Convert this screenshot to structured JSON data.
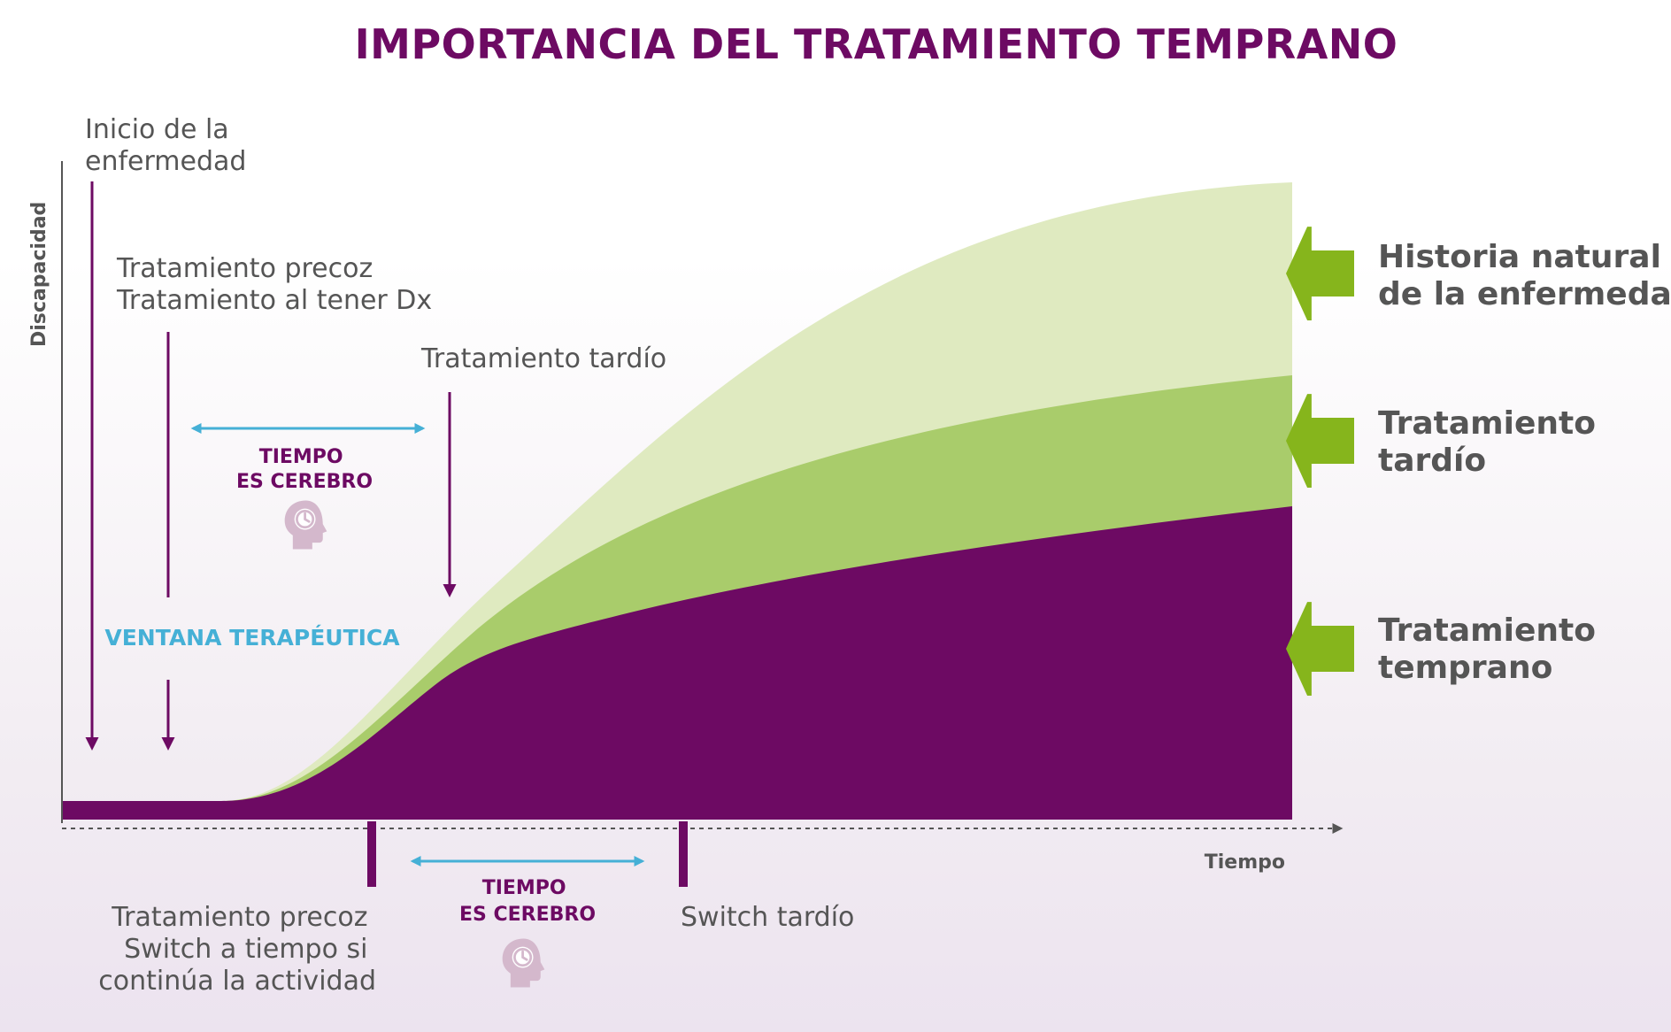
{
  "title": "IMPORTANCIA DEL TRATAMIENTO TEMPRANO",
  "axes": {
    "y_label": "Discapacidad",
    "x_label": "Tiempo"
  },
  "top_notes": {
    "onset": [
      "Inicio de la",
      "enfermedad"
    ],
    "early": [
      "Tratamiento precoz",
      "Tratamiento al tener Dx"
    ],
    "late": "Tratamiento tardío"
  },
  "tiempo_es_cerebro": [
    "TIEMPO",
    "ES CEREBRO"
  ],
  "ventana": "VENTANA TERAPÉUTICA",
  "bottom_notes": {
    "early_switch": [
      "Tratamiento precoz",
      "Switch a tiempo si",
      "continúa la actividad"
    ],
    "late_switch": "Switch tardío"
  },
  "legend": {
    "natural": [
      "Historia natural",
      "de la enfermedad"
    ],
    "late": [
      "Tratamiento",
      "tardío"
    ],
    "early": [
      "Tratamiento",
      "temprano"
    ]
  },
  "colors": {
    "title": "#6d0a63",
    "purple": "#6d0a63",
    "green_light": "#dfeac0",
    "green_mid": "#a9cc6b",
    "green_arrow": "#86b51c",
    "blue": "#45b0d6",
    "gray_text": "#555555",
    "head_icon": "#d4b8cc"
  },
  "icons": {
    "head": "head-clock-icon",
    "legend_arrow": "arrow-left-icon"
  }
}
